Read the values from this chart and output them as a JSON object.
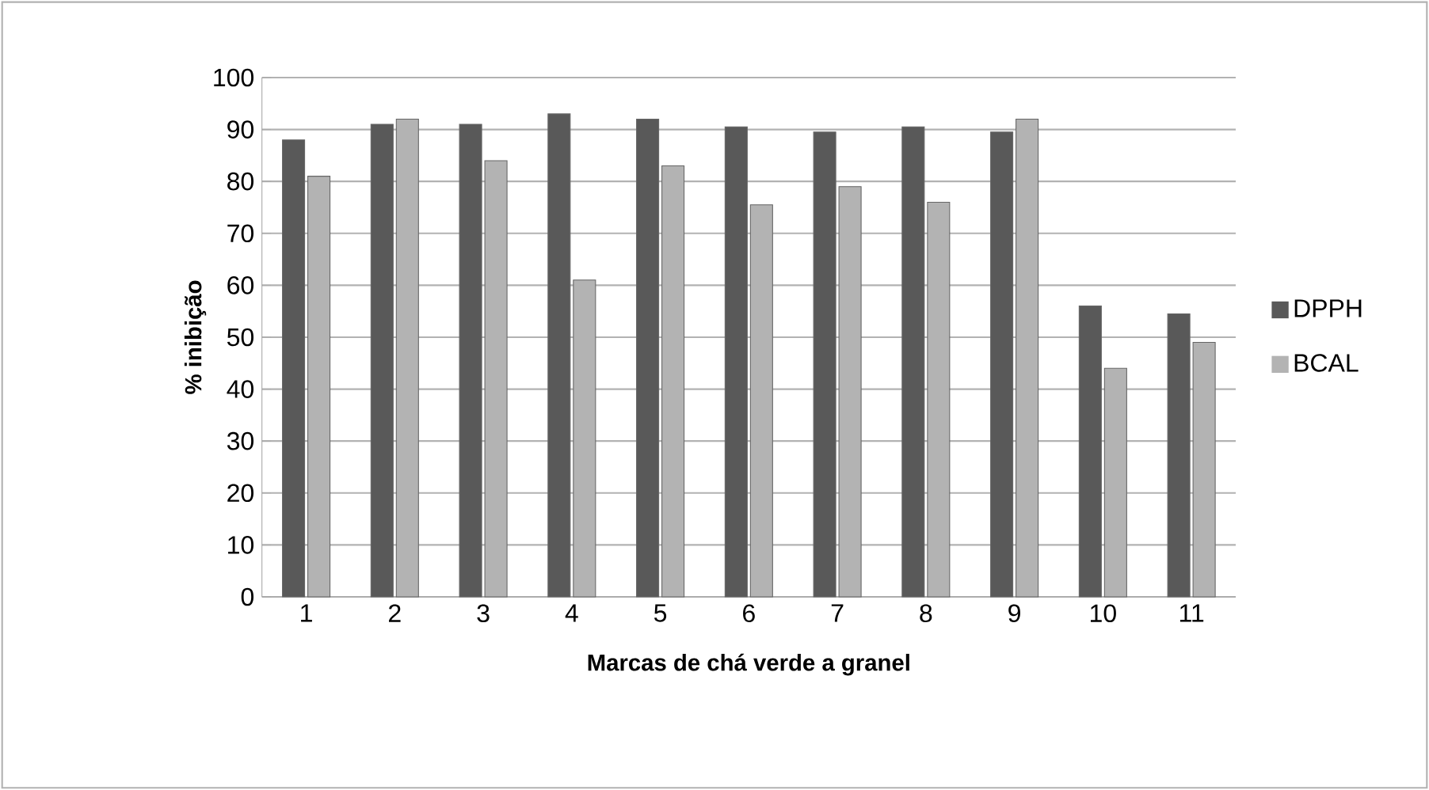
{
  "chart_data": {
    "type": "bar",
    "xlabel": "Marcas de chá verde a granel",
    "ylabel": "% inibição",
    "categories": [
      "1",
      "2",
      "3",
      "4",
      "5",
      "6",
      "7",
      "8",
      "9",
      "10",
      "11"
    ],
    "series": [
      {
        "name": "DPPH",
        "color": "#595959",
        "values": [
          88,
          91,
          91,
          93,
          92,
          90.5,
          89.5,
          90.5,
          89.5,
          56,
          54.5
        ]
      },
      {
        "name": "BCAL",
        "color": "#b3b3b3",
        "values": [
          81,
          92,
          84,
          61,
          83,
          75.5,
          79,
          76,
          92,
          44,
          49
        ]
      }
    ],
    "ylim": [
      0,
      100
    ],
    "yticks": [
      0,
      10,
      20,
      30,
      40,
      50,
      60,
      70,
      80,
      90,
      100
    ],
    "grid": "y",
    "legend": "right"
  }
}
